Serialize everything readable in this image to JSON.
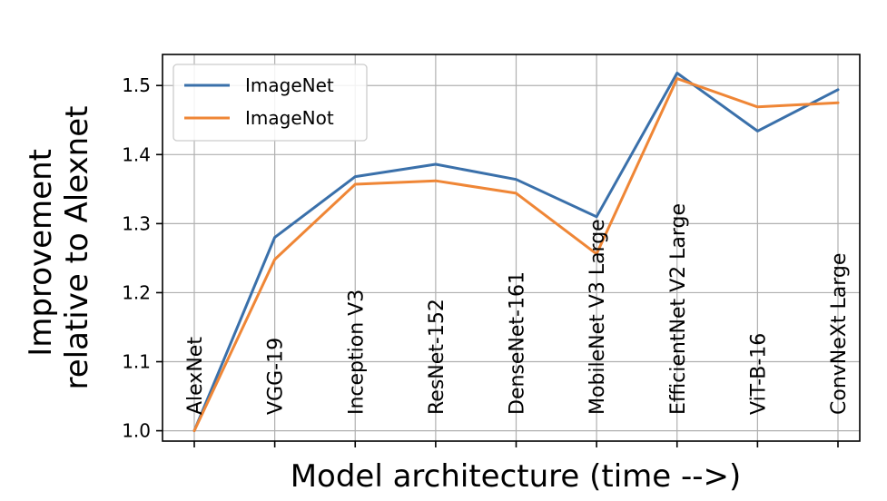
{
  "chart_data": {
    "type": "line",
    "title": "",
    "xlabel": "Model architecture (time -->)",
    "ylabel_lines": [
      "Improvement",
      "relative to Alexnet"
    ],
    "categories": [
      "AlexNet",
      "VGG-19",
      "Inception V3",
      "ResNet-152",
      "DenseNet-161",
      "MobileNet V3 Large",
      "EfficientNet V2 Large",
      "ViT-B-16",
      "ConvNeXt Large"
    ],
    "series": [
      {
        "name": "ImageNet",
        "color": "#3a70aa",
        "values": [
          1.0,
          1.28,
          1.368,
          1.386,
          1.364,
          1.31,
          1.518,
          1.434,
          1.494
        ]
      },
      {
        "name": "ImageNot",
        "color": "#ef8636",
        "values": [
          1.0,
          1.248,
          1.357,
          1.362,
          1.344,
          1.256,
          1.51,
          1.469,
          1.475
        ]
      }
    ],
    "ylim": [
      0.985,
      1.545
    ],
    "yticks": [
      1.0,
      1.1,
      1.2,
      1.3,
      1.4,
      1.5
    ],
    "ytick_labels": [
      "1.0",
      "1.1",
      "1.2",
      "1.3",
      "1.4",
      "1.5"
    ],
    "grid": true,
    "legend_position": "top-left"
  }
}
